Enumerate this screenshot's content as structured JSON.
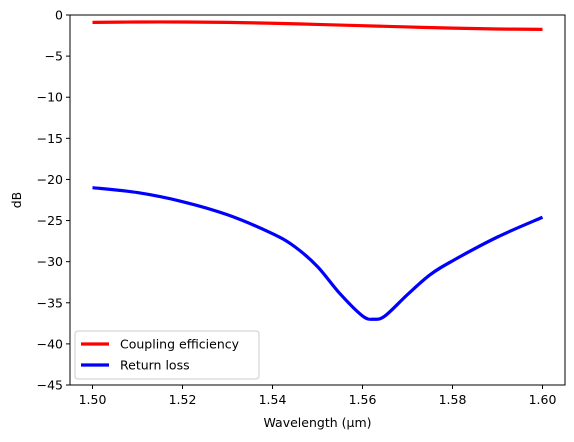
{
  "chart_data": {
    "type": "line",
    "xlabel": "Wavelength (μm)",
    "ylabel": "dB",
    "xlim": [
      1.495,
      1.605
    ],
    "ylim": [
      -45,
      0
    ],
    "xticks": [
      "1.50",
      "1.52",
      "1.54",
      "1.56",
      "1.58",
      "1.60"
    ],
    "xtick_values": [
      1.5,
      1.52,
      1.54,
      1.56,
      1.58,
      1.6
    ],
    "yticks": [
      "0",
      "−5",
      "−10",
      "−15",
      "−20",
      "−25",
      "−30",
      "−35",
      "−40",
      "−45"
    ],
    "ytick_values": [
      0,
      -5,
      -10,
      -15,
      -20,
      -25,
      -30,
      -35,
      -40,
      -45
    ],
    "grid": false,
    "legend_position": "lower-left",
    "series": [
      {
        "name": "Coupling efficiency",
        "color": "#ff0000",
        "x": [
          1.5,
          1.51,
          1.52,
          1.53,
          1.54,
          1.55,
          1.56,
          1.57,
          1.58,
          1.59,
          1.6
        ],
        "y": [
          -0.9,
          -0.85,
          -0.85,
          -0.9,
          -1.0,
          -1.15,
          -1.3,
          -1.45,
          -1.6,
          -1.7,
          -1.75
        ]
      },
      {
        "name": "Return loss",
        "color": "#0000ff",
        "x": [
          1.5,
          1.51,
          1.52,
          1.53,
          1.54,
          1.545,
          1.55,
          1.555,
          1.56,
          1.5625,
          1.565,
          1.57,
          1.575,
          1.58,
          1.59,
          1.6
        ],
        "y": [
          -21.0,
          -21.6,
          -22.7,
          -24.3,
          -26.6,
          -28.2,
          -30.6,
          -33.9,
          -36.6,
          -37.0,
          -36.6,
          -34.0,
          -31.6,
          -29.9,
          -27.0,
          -24.6
        ]
      }
    ]
  }
}
